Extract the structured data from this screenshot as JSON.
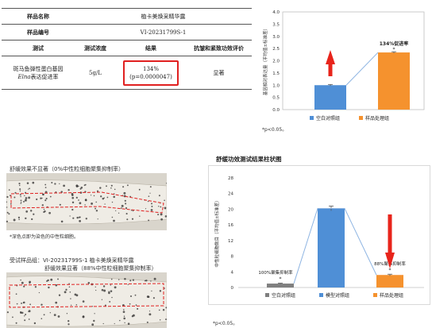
{
  "table": {
    "sample_name_label": "样品名称",
    "sample_name": "植卡美焕采精华露",
    "sample_no_label": "样品编号",
    "sample_no": "VI-20231799S-1",
    "headers": [
      "测试",
      "测试浓度",
      "结果",
      "抗皱和紧致功效评价"
    ],
    "row": {
      "test_line1": "斑马鱼弹性蛋白基因",
      "test_gene": "Elna",
      "test_line2": "表达促进率",
      "concentration": "5g/L",
      "result_value": "134%",
      "result_p": "(p=0.0000047)",
      "evaluation": "显著"
    }
  },
  "fish_top": {
    "caption": "舒缓效果不显著（0%中性粒细胞聚集抑制率）",
    "note": "*深色点即为染色的中性粒细胞。"
  },
  "fish_bottom": {
    "caption_line1": "受试样品组：VI-20231799S-1 植卡美焕采精华露",
    "caption_line2": "舒缓效果显著（88%中性粒细胞聚集抑制率）"
  },
  "chart1_footnote": "*p<0.05。",
  "chart2_title": "舒缓功效测试结果柱状图",
  "chart2_footnote": "*p<0.05。",
  "colors": {
    "blue": "#4f8fd6",
    "orange": "#f5922e",
    "gray": "#7f7f7f",
    "red": "#e8241b",
    "line": "#8db4e2"
  },
  "chart_data": [
    {
      "type": "bar",
      "categories": [
        "空白对照组",
        "样品处理组"
      ],
      "values": [
        1.0,
        2.34
      ],
      "errors": [
        0.03,
        0.03
      ],
      "ylabel": "基因相对表达量（平均值±标准差）",
      "ylim": [
        0,
        4.0
      ],
      "yticks": [
        "0.0",
        "0.5",
        "1.0",
        "1.5",
        "2.0",
        "2.5",
        "3.0",
        "3.5",
        "4.0"
      ],
      "annotations": [
        "134%促进率",
        "*"
      ],
      "legend": [
        "空白对照组",
        "样品处理组"
      ]
    },
    {
      "type": "bar",
      "categories": [
        "空白对照组",
        "模型对照组",
        "样品处理组"
      ],
      "values": [
        1.0,
        20.2,
        3.2
      ],
      "errors": [
        0.1,
        0.6,
        0.2
      ],
      "ylabel": "中性粒细胞数目（平均值±标准差）",
      "ylim": [
        0,
        28
      ],
      "yticks": [
        "0",
        "4",
        "8",
        "12",
        "16",
        "20",
        "24",
        "28"
      ],
      "annotations": [
        "100%聚集抑制率",
        "88%聚集抑制率",
        "*",
        "*"
      ],
      "legend": [
        "空白对照组",
        "模型对照组",
        "样品处理组"
      ]
    }
  ]
}
